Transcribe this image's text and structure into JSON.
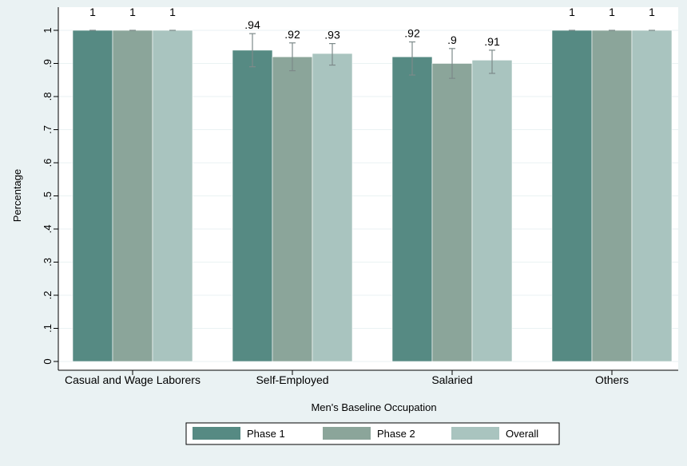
{
  "chart_data": {
    "type": "bar",
    "title": "",
    "xlabel": "Men's Baseline Occupation",
    "ylabel": "Percentage",
    "ylim": [
      0,
      1.05
    ],
    "yticks": [
      0,
      0.1,
      0.2,
      0.3,
      0.4,
      0.5,
      0.6,
      0.7,
      0.8,
      0.9,
      1
    ],
    "ytick_labels": [
      "0",
      ".1",
      ".2",
      ".3",
      ".4",
      ".5",
      ".6",
      ".7",
      ".8",
      ".9",
      "1"
    ],
    "categories": [
      "Casual and Wage Laborers",
      "Self-Employed",
      "Salaried",
      "Others"
    ],
    "series": [
      {
        "name": "Phase 1",
        "color": "#568a83",
        "values": [
          1,
          0.94,
          0.92,
          1
        ],
        "value_labels": [
          "1",
          ".94",
          ".92",
          "1"
        ],
        "ci_low": [
          1,
          0.89,
          0.865,
          1
        ],
        "ci_high": [
          1,
          0.99,
          0.965,
          1
        ]
      },
      {
        "name": "Phase 2",
        "color": "#8ba59a",
        "values": [
          1,
          0.92,
          0.9,
          1
        ],
        "value_labels": [
          "1",
          ".92",
          ".9",
          "1"
        ],
        "ci_low": [
          1,
          0.878,
          0.855,
          1
        ],
        "ci_high": [
          1,
          0.962,
          0.945,
          1
        ]
      },
      {
        "name": "Overall",
        "color": "#a9c4bf",
        "values": [
          1,
          0.93,
          0.91,
          1
        ],
        "value_labels": [
          "1",
          ".93",
          ".91",
          "1"
        ],
        "ci_low": [
          1,
          0.895,
          0.87,
          1
        ],
        "ci_high": [
          1,
          0.96,
          0.94,
          1
        ]
      }
    ],
    "legend_position": "bottom",
    "grid": true,
    "colors": {
      "background": "#eaf2f3",
      "plot_background": "#ffffff",
      "gridline": "#eaf2f3",
      "error_bar": "#7d8a8a"
    }
  }
}
